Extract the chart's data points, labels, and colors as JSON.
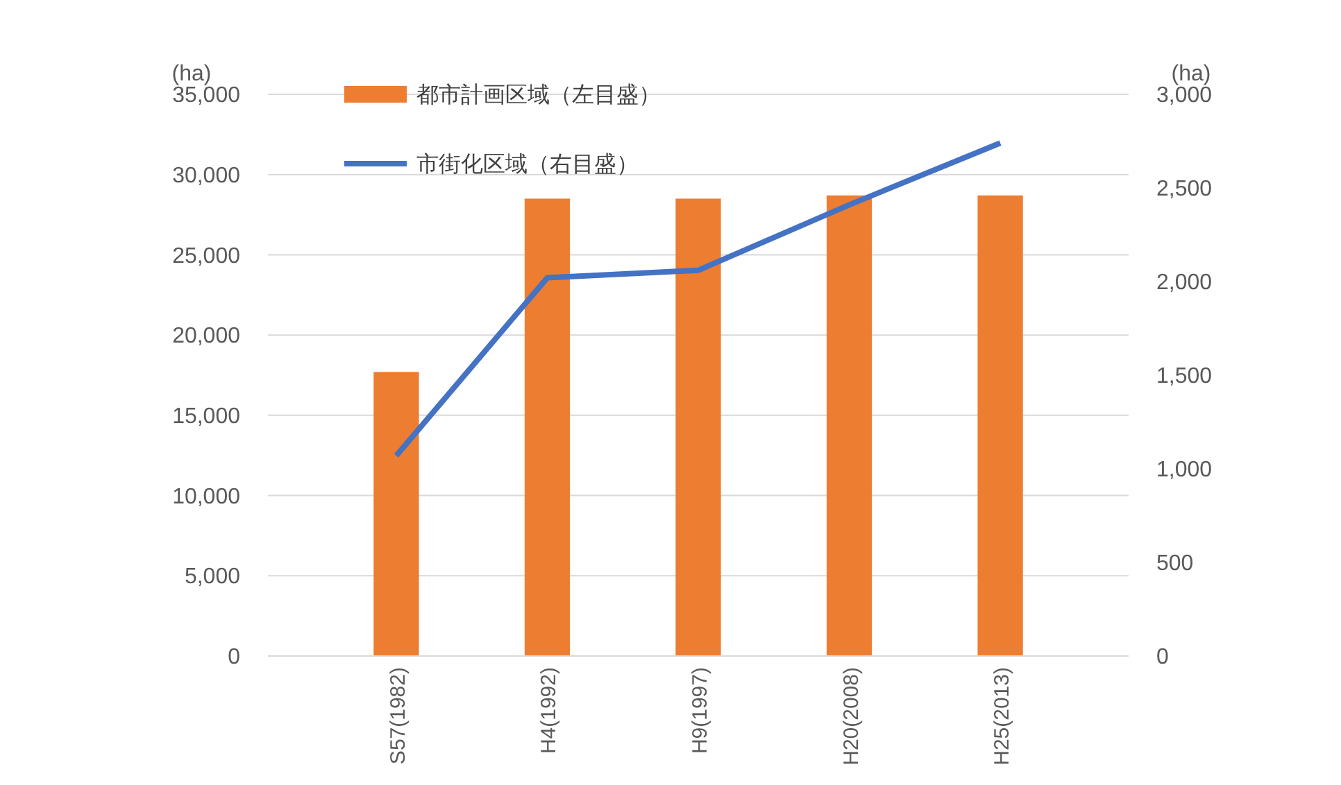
{
  "chart_data": {
    "type": "bar",
    "categories": [
      "S57(1982)",
      "H4(1992)",
      "H9(1997)",
      "H20(2008)",
      "H25(2013)"
    ],
    "series": [
      {
        "name": "都市計画区域（左目盛）",
        "color": "#ed7d31",
        "values": [
          17700,
          28500,
          28500,
          28700,
          28700
        ]
      },
      {
        "name": "市街化区域（右目盛）",
        "type": "line",
        "axis": "y2",
        "color": "#4472c4",
        "values": [
          1070,
          2020,
          2060,
          2410,
          2740
        ]
      }
    ],
    "ylabel": "(ha)",
    "y2label": "(ha)",
    "ylim": [
      0,
      35000
    ],
    "yticks": [
      {
        "value": 0,
        "label": "0"
      },
      {
        "value": 5000,
        "label": "5,000"
      },
      {
        "value": 10000,
        "label": "10,000"
      },
      {
        "value": 15000,
        "label": "15,000"
      },
      {
        "value": 20000,
        "label": "20,000"
      },
      {
        "value": 25000,
        "label": "25,000"
      },
      {
        "value": 30000,
        "label": "30,000"
      },
      {
        "value": 35000,
        "label": "35,000"
      }
    ],
    "y2lim": [
      0,
      3000
    ],
    "y2ticks": [
      {
        "value": 0,
        "label": "0"
      },
      {
        "value": 500,
        "label": "500"
      },
      {
        "value": 1000,
        "label": "1,000"
      },
      {
        "value": 1500,
        "label": "1,500"
      },
      {
        "value": 2000,
        "label": "2,000"
      },
      {
        "value": 2500,
        "label": "2,500"
      },
      {
        "value": 3000,
        "label": "3,000"
      }
    ],
    "grid": "y",
    "legend": "top left",
    "marker": "none"
  }
}
